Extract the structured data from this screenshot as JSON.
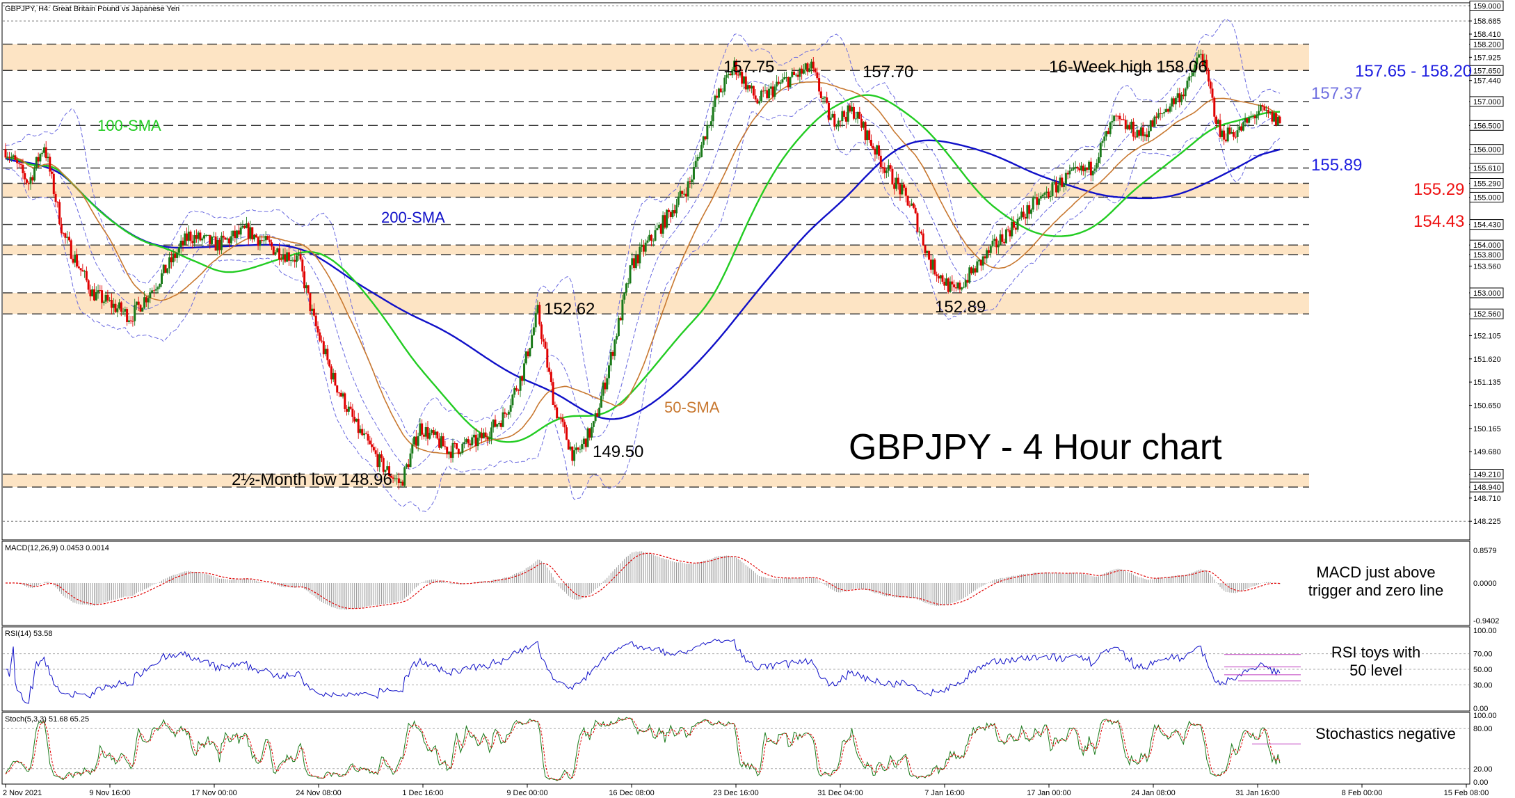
{
  "header": {
    "symbol_info": "GBPJPY, H4:  Great Britain Pound vs Japanese Yen"
  },
  "colors": {
    "bull": "#1a7a1a",
    "bear": "#e00000",
    "sma200": "#1010c8",
    "sma100": "#22cc22",
    "sma50": "#c87830",
    "bollinger": "#6a6ae0",
    "zone": "#fde4c4",
    "annot_blue": "#1f1fe0",
    "annot_light": "#7070e0",
    "annot_red": "#ee1111",
    "annot_green": "#22cc22",
    "annot_brown": "#c87830"
  },
  "chart_data": {
    "type": "candlestick",
    "title": "GBPJPY - 4 Hour chart",
    "ylim": [
      147.85,
      159.05
    ],
    "x_ticks": [
      "2 Nov 2021",
      "9 Nov 16:00",
      "17 Nov 00:00",
      "24 Nov 08:00",
      "1 Dec 16:00",
      "9 Dec 00:00",
      "16 Dec 08:00",
      "23 Dec 16:00",
      "31 Dec 04:00",
      "7 Jan 16:00",
      "17 Jan 00:00",
      "24 Jan 08:00",
      "31 Jan 16:00",
      "8 Feb 00:00",
      "15 Feb 08:00"
    ],
    "y_ticks": [
      "159.000",
      "158.685",
      "158.410",
      "158.200",
      "157.925",
      "157.650",
      "157.440",
      "157.000",
      "156.500",
      "156.000",
      "155.610",
      "155.290",
      "155.000",
      "154.430",
      "154.000",
      "153.800",
      "153.560",
      "153.000",
      "152.560",
      "152.105",
      "151.620",
      "151.135",
      "150.650",
      "150.165",
      "149.680",
      "149.210",
      "148.940",
      "148.710",
      "148.225"
    ],
    "highlighted_ticks": [
      "159.000",
      "158.200",
      "157.650",
      "157.000",
      "156.500",
      "156.000",
      "155.610",
      "155.290",
      "155.000",
      "154.430",
      "154.000",
      "153.800",
      "153.000",
      "152.560",
      "149.210",
      "148.940"
    ],
    "support_resistance": [
      157.65,
      158.2,
      157.0,
      156.5,
      156.0,
      155.61,
      155.29,
      155.0,
      154.43,
      154.0,
      153.8,
      153.0,
      152.56,
      149.21,
      148.94
    ],
    "zones": [
      [
        157.65,
        158.2
      ],
      [
        155.0,
        155.29
      ],
      [
        153.8,
        154.0
      ],
      [
        152.56,
        153.0
      ],
      [
        148.94,
        149.21
      ]
    ],
    "indicators": [
      "100-SMA",
      "200-SMA",
      "50-SMA"
    ],
    "annotations": {
      "high1": "157.75",
      "high2": "157.70",
      "high3": "16-Week high 158.06",
      "low1": "152.62",
      "low2": "152.89",
      "low3": "149.50",
      "low4": "2½-Month low 148.96",
      "r_zone": "157.65 - 158.20",
      "r_bb": "157.37",
      "s_200": "155.89",
      "s_100": "155.29",
      "s_low": "154.43",
      "sma100": "100-SMA",
      "sma200": "200-SMA",
      "sma50": "50-SMA"
    },
    "anchors": [
      [
        0,
        156.0
      ],
      [
        12,
        155.3
      ],
      [
        20,
        156.1
      ],
      [
        30,
        154.2
      ],
      [
        45,
        153.0
      ],
      [
        65,
        152.5
      ],
      [
        80,
        153.3
      ],
      [
        95,
        154.2
      ],
      [
        110,
        154.0
      ],
      [
        125,
        154.3
      ],
      [
        140,
        153.9
      ],
      [
        152,
        153.7
      ],
      [
        160,
        152.4
      ],
      [
        170,
        151.2
      ],
      [
        182,
        150.2
      ],
      [
        195,
        149.4
      ],
      [
        205,
        149.0
      ],
      [
        215,
        150.2
      ],
      [
        230,
        149.7
      ],
      [
        245,
        149.9
      ],
      [
        258,
        150.4
      ],
      [
        268,
        151.3
      ],
      [
        276,
        152.6
      ],
      [
        285,
        150.6
      ],
      [
        295,
        149.55
      ],
      [
        305,
        150.2
      ],
      [
        312,
        151.3
      ],
      [
        325,
        153.6
      ],
      [
        340,
        154.4
      ],
      [
        355,
        155.3
      ],
      [
        368,
        157.0
      ],
      [
        378,
        157.75
      ],
      [
        390,
        157.0
      ],
      [
        403,
        157.4
      ],
      [
        418,
        157.7
      ],
      [
        428,
        156.6
      ],
      [
        440,
        156.8
      ],
      [
        455,
        155.7
      ],
      [
        470,
        154.8
      ],
      [
        480,
        153.6
      ],
      [
        492,
        153.0
      ],
      [
        505,
        153.6
      ],
      [
        520,
        154.3
      ],
      [
        535,
        154.9
      ],
      [
        550,
        155.4
      ],
      [
        563,
        155.6
      ],
      [
        575,
        156.6
      ],
      [
        590,
        156.3
      ],
      [
        603,
        156.9
      ],
      [
        613,
        157.3
      ],
      [
        620,
        158.06
      ],
      [
        630,
        156.3
      ],
      [
        640,
        156.4
      ],
      [
        650,
        156.8
      ],
      [
        660,
        156.6
      ]
    ],
    "macd": {
      "label": "MACD(12,26,9) 0.0453 0.0014",
      "annotation": "MACD just above trigger and zero line",
      "ticks": [
        "0.8579",
        "0.0000",
        "-0.9402"
      ]
    },
    "rsi": {
      "label": "RSI(14) 53.58",
      "annotation": "RSI toys with 50 level",
      "ticks": [
        "100.00",
        "70.00",
        "50.00",
        "30.00",
        "0.00"
      ]
    },
    "stoch": {
      "label": "Stoch(5,3,3) 51.68 65.25",
      "annotation": "Stochastics negative",
      "ticks": [
        "100.00",
        "80.00",
        "20.00",
        "0.00"
      ]
    }
  }
}
